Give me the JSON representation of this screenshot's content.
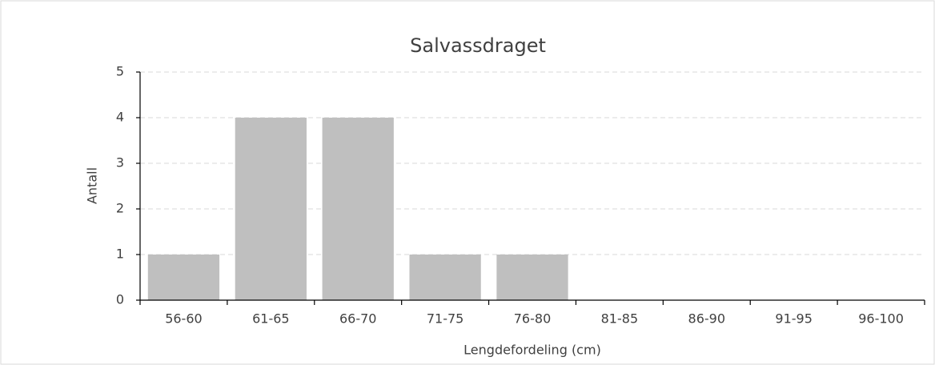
{
  "chart_data": {
    "type": "bar",
    "title": "Salvassdraget",
    "x_label": "Lengdefordeling (cm)",
    "y_label": "Antall",
    "categories": [
      "56-60",
      "61-65",
      "66-70",
      "71-75",
      "76-80",
      "81-85",
      "86-90",
      "91-95",
      "96-100"
    ],
    "values": [
      1,
      4,
      4,
      1,
      1,
      0,
      0,
      0,
      0
    ],
    "color": "#bfbfbf",
    "ylim": [
      0,
      5
    ],
    "yticks": [
      0,
      1,
      2,
      3,
      4,
      5
    ],
    "grid": true
  }
}
